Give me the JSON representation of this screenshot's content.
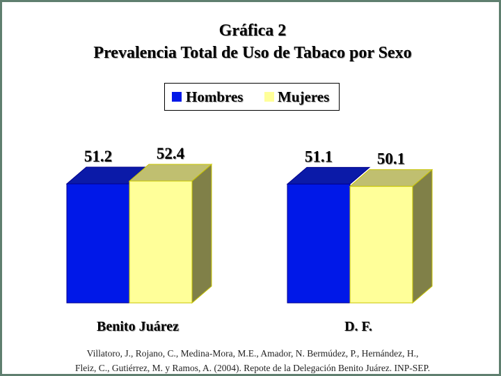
{
  "chart_data": {
    "type": "bar",
    "title": "Gráfica 2",
    "subtitle": "Prevalencia Total de Uso de Tabaco por Sexo",
    "categories": [
      "Benito Juárez",
      "D. F."
    ],
    "series": [
      {
        "name": "Hombres",
        "values": [
          51.2,
          51.1
        ],
        "value_labels": [
          "51.2",
          "51.1"
        ],
        "color": "#0018e8"
      },
      {
        "name": "Mujeres",
        "values": [
          52.4,
          50.1
        ],
        "value_labels": [
          "52.4",
          "50.1"
        ],
        "color": "#ffff99"
      }
    ],
    "legend": "top-center",
    "grid": false,
    "style": "3d"
  },
  "source": {
    "line1": "Villatoro, J., Rojano, C., Medina-Mora, M.E., Amador, N. Bermúdez, P., Hernández, H.,",
    "line2": "Fleiz, C., Gutiérrez, M. y Ramos, A. (2004). Repote de la Delegación Benito Juárez. INP-SEP."
  }
}
